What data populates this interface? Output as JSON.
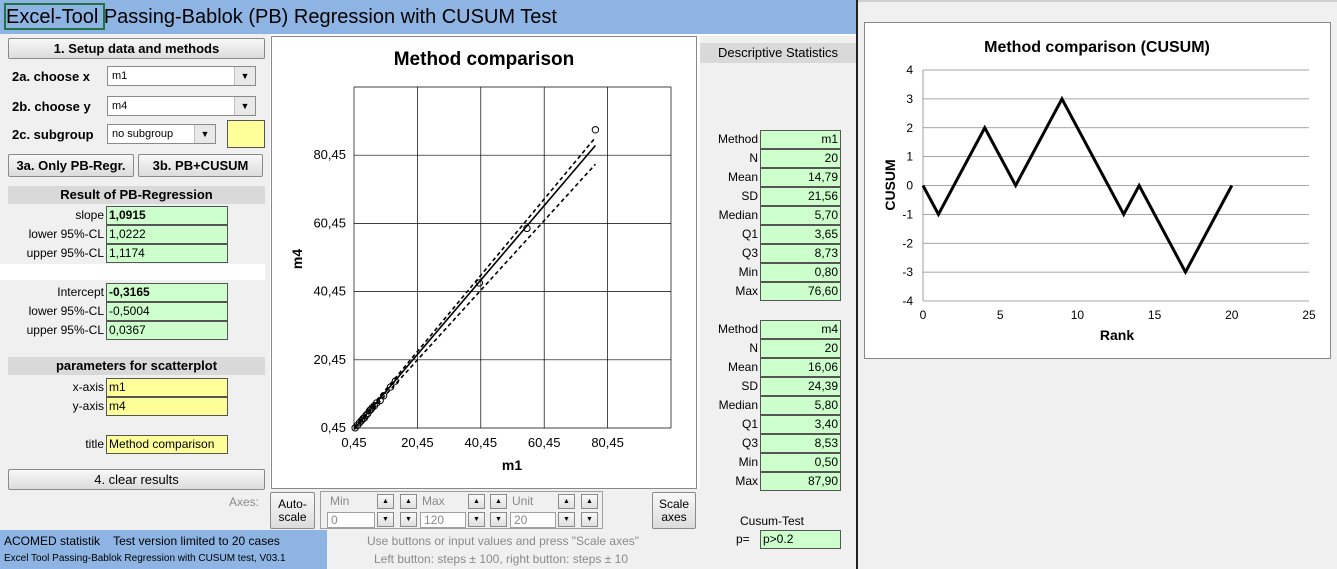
{
  "app": {
    "title_prefix": "Excel-Tool",
    "title_rest": " Passing-Bablok (PB) Regression with CUSUM Test"
  },
  "setup": {
    "setup_button": "1. Setup data and methods",
    "x_label": "2a. choose x",
    "x_value": "m1",
    "y_label": "2b. choose y",
    "y_value": "m4",
    "subgroup_label": "2c. subgroup",
    "subgroup_value": "no subgroup",
    "only_pb_button": "3a. Only PB-Regr.",
    "pb_cusum_button": "3b. PB+CUSUM"
  },
  "result": {
    "header": "Result of PB-Regression",
    "slope_label": "slope",
    "slope": "1,0915",
    "slope_lower_label": "lower 95%-CL",
    "slope_lower": "1,0222",
    "slope_upper_label": "upper 95%-CL",
    "slope_upper": "1,1174",
    "intercept_label": "Intercept",
    "intercept": "-0,3165",
    "int_lower_label": "lower 95%-CL",
    "int_lower": "-0,5004",
    "int_upper_label": "upper 95%-CL",
    "int_upper": "0,0367"
  },
  "scatter_params": {
    "header": "parameters for scatterplot",
    "xaxis_label": "x-axis",
    "xaxis_value": "m1",
    "yaxis_label": "y-axis",
    "yaxis_value": "m4",
    "title_label": "title",
    "title_value": "Method comparison"
  },
  "clear_button": "4. clear results",
  "axes": {
    "axes_label": "Axes:",
    "auto_scale": "Auto-scale",
    "min_label": "Min",
    "min_value": "0",
    "max_label": "Max",
    "max_value": "120",
    "unit_label": "Unit",
    "unit_value": "20",
    "scale_axes": "Scale axes",
    "hint1": "Use buttons or input values and press \"Scale axes\"",
    "hint2": "Left button: steps ± 100, right button: steps ± 10"
  },
  "footer": {
    "line1": "ACOMED statistik    Test version limited to 20 cases",
    "line2": "Excel Tool Passing-Bablok Regression with CUSUM test, V03.1"
  },
  "stats": {
    "header": "Descriptive Statistics",
    "labels": [
      "Method",
      "N",
      "Mean",
      "SD",
      "Median",
      "Q1",
      "Q3",
      "Min",
      "Max"
    ],
    "x_values": [
      "m1",
      "20",
      "14,79",
      "21,56",
      "5,70",
      "3,65",
      "8,73",
      "0,80",
      "76,60"
    ],
    "y_values": [
      "m4",
      "20",
      "16,06",
      "24,39",
      "5,80",
      "3,40",
      "8,53",
      "0,50",
      "87,90"
    ],
    "cusum_label": "Cusum-Test",
    "p_label": "p=",
    "p_value": "p>0.2"
  },
  "colors": {
    "header_blue": "#8db4e2",
    "cell_green": "#ccffcc",
    "cell_yellow": "#ffff99",
    "panel_grey": "#f0f0f0"
  },
  "chart_data": [
    {
      "type": "scatter",
      "title": "Method comparison",
      "xlabel": "m1",
      "ylabel": "m4",
      "xlim": [
        0.45,
        100.45
      ],
      "ylim": [
        0.45,
        100.45
      ],
      "xticks": [
        "0,45",
        "20,45",
        "40,45",
        "60,45",
        "80,45"
      ],
      "yticks": [
        "0,45",
        "20,45",
        "40,45",
        "60,45",
        "80,45"
      ],
      "points": [
        [
          0.8,
          0.5
        ],
        [
          1.5,
          1.2
        ],
        [
          2.2,
          2.0
        ],
        [
          2.8,
          2.6
        ],
        [
          3.3,
          3.2
        ],
        [
          3.7,
          3.4
        ],
        [
          4.2,
          4.1
        ],
        [
          4.8,
          4.7
        ],
        [
          5.4,
          5.6
        ],
        [
          5.7,
          5.8
        ],
        [
          6.2,
          6.4
        ],
        [
          6.9,
          7.0
        ],
        [
          7.6,
          7.8
        ],
        [
          8.7,
          8.5
        ],
        [
          9.8,
          9.9
        ],
        [
          12.0,
          12.5
        ],
        [
          13.5,
          14.2
        ],
        [
          40.0,
          43.0
        ],
        [
          55.0,
          59.0
        ],
        [
          76.6,
          87.9
        ]
      ],
      "lines": [
        {
          "style": "solid",
          "slope": 1.0915,
          "intercept": -0.3165
        },
        {
          "style": "dashed",
          "slope": 1.1174,
          "intercept": 0.0367
        },
        {
          "style": "dashed",
          "slope": 1.0222,
          "intercept": -0.5004
        }
      ],
      "grid": true
    },
    {
      "type": "line",
      "title": "Method comparison (CUSUM)",
      "xlabel": "Rank",
      "ylabel": "CUSUM",
      "xlim": [
        0,
        25
      ],
      "ylim": [
        -4,
        4
      ],
      "xticks": [
        "0",
        "5",
        "10",
        "15",
        "20",
        "25"
      ],
      "yticks": [
        "4",
        "3",
        "2",
        "1",
        "0",
        "-1",
        "-2",
        "-3",
        "-4"
      ],
      "x": [
        0,
        1,
        4,
        6,
        9,
        13,
        14,
        17,
        20
      ],
      "y": [
        0,
        -1,
        2,
        0,
        3,
        -1,
        0,
        -3,
        0
      ],
      "grid": true
    }
  ]
}
